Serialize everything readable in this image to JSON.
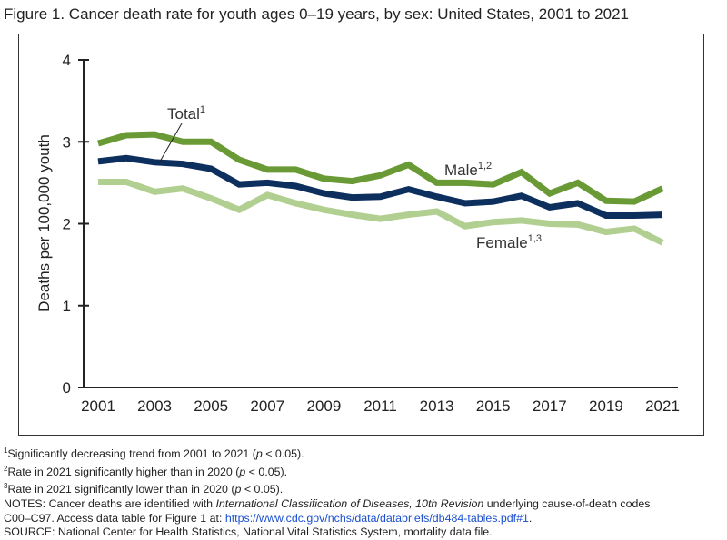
{
  "title": "Figure 1. Cancer death rate for youth ages 0–19 years, by sex: United States, 2001 to 2021",
  "chart_data": {
    "type": "line",
    "title": "Figure 1. Cancer death rate for youth ages 0–19 years, by sex: United States, 2001 to 2021",
    "xlabel": "",
    "ylabel": "Deaths per 100,000 youth",
    "ylim": [
      0,
      4
    ],
    "yticks": [
      "0",
      "1",
      "2",
      "3",
      "4"
    ],
    "xticks": [
      "2001",
      "2003",
      "2005",
      "2007",
      "2009",
      "2011",
      "2013",
      "2015",
      "2017",
      "2019",
      "2021"
    ],
    "x": [
      2001,
      2002,
      2003,
      2004,
      2005,
      2006,
      2007,
      2008,
      2009,
      2010,
      2011,
      2012,
      2013,
      2014,
      2015,
      2016,
      2017,
      2018,
      2019,
      2020,
      2021
    ],
    "grid": false,
    "series": [
      {
        "name": "Male",
        "sup": "1,2",
        "color": "#6a9a35",
        "values": [
          2.98,
          3.08,
          3.09,
          3.0,
          3.0,
          2.78,
          2.66,
          2.66,
          2.55,
          2.52,
          2.59,
          2.72,
          2.5,
          2.5,
          2.48,
          2.63,
          2.37,
          2.5,
          2.28,
          2.27,
          2.43
        ]
      },
      {
        "name": "Total",
        "sup": "1",
        "color": "#0d2f5e",
        "values": [
          2.76,
          2.8,
          2.75,
          2.73,
          2.67,
          2.48,
          2.5,
          2.46,
          2.37,
          2.32,
          2.33,
          2.42,
          2.33,
          2.25,
          2.27,
          2.34,
          2.2,
          2.25,
          2.1,
          2.1,
          2.11
        ]
      },
      {
        "name": "Female",
        "sup": "1,3",
        "color": "#b0cf90",
        "values": [
          2.51,
          2.51,
          2.39,
          2.43,
          2.31,
          2.17,
          2.35,
          2.25,
          2.17,
          2.11,
          2.06,
          2.11,
          2.15,
          1.97,
          2.02,
          2.04,
          2.0,
          1.99,
          1.9,
          1.94,
          1.77
        ]
      }
    ]
  },
  "notes": {
    "n1": "Significantly decreasing trend from 2001 to 2021 (",
    "n2": "Rate in 2021 significantly higher than in 2020 (",
    "n3": "Rate in 2021 significantly lower than in 2020 (",
    "p": "p",
    "ptail": " < 0.05).",
    "notes_a": "NOTES: Cancer deaths are identified with ",
    "notes_i": "International Classification of Diseases, 10th Revision",
    "notes_b": " underlying cause-of-death codes",
    "notes_c": "C00–C97. Access data table for Figure 1 at: ",
    "link": "https://www.cdc.gov/nchs/data/databriefs/db484-tables.pdf#1",
    "source": "SOURCE: National Center for Health Statistics, National Vital Statistics System, mortality data file."
  }
}
